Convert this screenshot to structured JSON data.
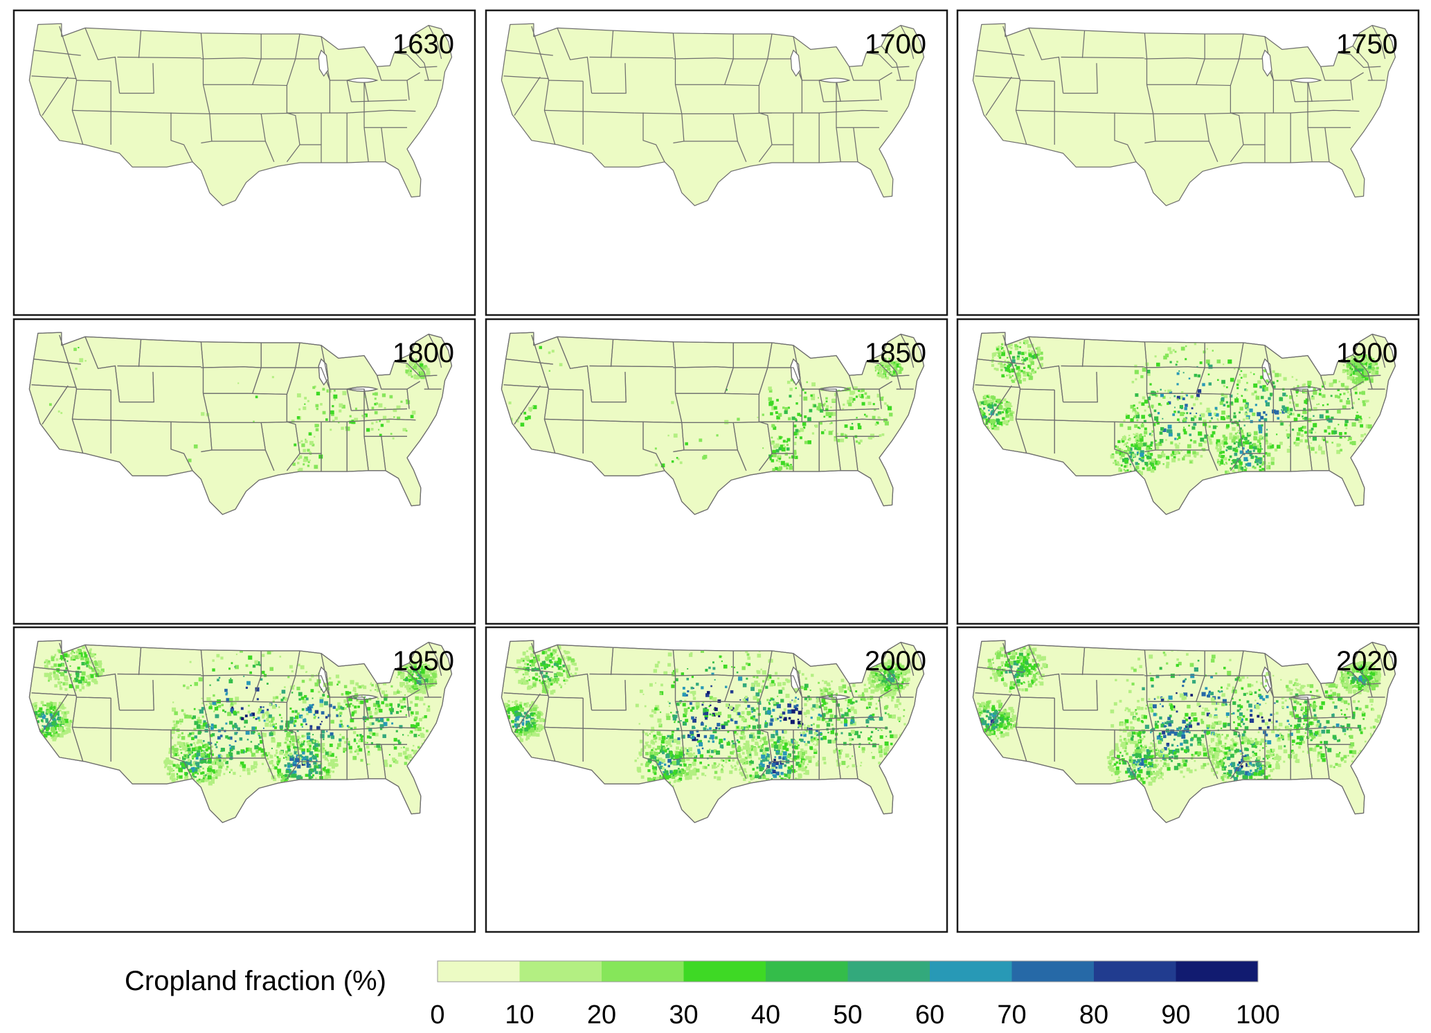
{
  "panels": [
    {
      "year": "1630",
      "intensity": 0.0
    },
    {
      "year": "1700",
      "intensity": 0.0
    },
    {
      "year": "1750",
      "intensity": 0.0
    },
    {
      "year": "1800",
      "intensity": 0.12
    },
    {
      "year": "1850",
      "intensity": 0.3
    },
    {
      "year": "1900",
      "intensity": 0.7
    },
    {
      "year": "1950",
      "intensity": 0.9
    },
    {
      "year": "2000",
      "intensity": 1.0
    },
    {
      "year": "2020",
      "intensity": 0.95
    }
  ],
  "legend": {
    "title": "Cropland  fraction (%)",
    "ticks": [
      "0",
      "10",
      "20",
      "30",
      "40",
      "50",
      "60",
      "70",
      "80",
      "90",
      "100"
    ],
    "colors": [
      "#ecfbc4",
      "#b3ef82",
      "#86e65a",
      "#3ed925",
      "#34bd4a",
      "#33a97c",
      "#2899b6",
      "#2669a7",
      "#213c8f",
      "#111b70"
    ]
  }
}
